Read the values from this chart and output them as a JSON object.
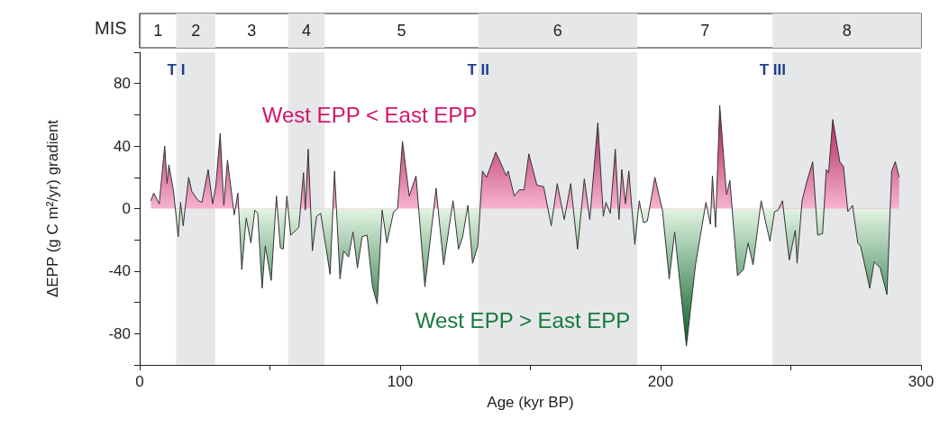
{
  "chart_data": {
    "type": "area",
    "xlabel": "Age (kyr BP)",
    "ylabel": "ΔEPP (g C m²/yr) gradient",
    "xlim": [
      0,
      300
    ],
    "xticks": [
      0,
      {
        "value": 50,
        "label": null
      },
      100,
      {
        "value": 150,
        "label": null
      },
      200,
      {
        "value": 250,
        "label": null
      },
      300
    ],
    "ylim": [
      -100,
      100
    ],
    "yticks": [
      {
        "value": -100,
        "label": null
      },
      -80,
      {
        "value": -60,
        "label": null
      },
      -40,
      {
        "value": -20,
        "label": null
      },
      0,
      {
        "value": 20,
        "label": null
      },
      40,
      {
        "value": 60,
        "label": null
      },
      80,
      {
        "value": 100,
        "label": null
      }
    ],
    "grid": false,
    "marker": "none",
    "line_style": "solid",
    "series": [
      {
        "color": "#333333",
        "x": [
          4.3,
          5.4,
          7.5,
          9.6,
          10.5,
          11.2,
          13,
          14.8,
          15.7,
          16.7,
          18.8,
          20,
          22.5,
          23.9,
          26.3,
          28,
          29.2,
          30.9,
          32.3,
          33.7,
          36.3,
          37.7,
          39.2,
          40.9,
          42.7,
          44.2,
          45.3,
          47,
          48.2,
          50.5,
          52.5,
          54,
          55.1,
          56.5,
          58,
          61.1,
          62.9,
          63.6,
          64.7,
          66.3,
          67.9,
          69.5,
          73.1,
          74.8,
          76.9,
          78.3,
          80.2,
          81.9,
          83.6,
          85.4,
          87.3,
          89.4,
          91.2,
          93.1,
          94.9,
          97.5,
          99,
          100.9,
          103.5,
          106.1,
          109.5,
          113.8,
          116.7,
          120.3,
          122.4,
          124,
          126,
          127.8,
          129.8,
          131.6,
          133.2,
          136.7,
          138.4,
          140.7,
          141.5,
          143.8,
          145.7,
          147.6,
          149.4,
          152.5,
          155.1,
          158,
          160.3,
          163,
          165.5,
          168.1,
          170.7,
          172.8,
          175.9,
          178,
          179,
          180.7,
          182.6,
          184,
          185.1,
          186.5,
          187.8,
          190.1,
          191.8,
          193.4,
          194.9,
          197.8,
          200.7,
          203.3,
          205.4,
          209.9,
          213.4,
          217.4,
          219.1,
          219.9,
          221.1,
          222.7,
          225.3,
          226.6,
          229.5,
          231.8,
          233.6,
          235.5,
          238.6,
          240.5,
          242,
          243.7,
          245.1,
          246.8,
          249.4,
          251.7,
          252.4,
          254.3,
          256.1,
          258.4,
          260.3,
          262.2,
          263.6,
          264.5,
          266.1,
          268.8,
          270.2,
          271.9,
          273.7,
          275.7,
          276.8,
          280.3,
          282,
          284.3,
          286.9,
          288.7,
          290.1,
          291.6
        ],
        "values": [
          5,
          10,
          3,
          40,
          16,
          28,
          11,
          -18,
          4,
          -11,
          20,
          11,
          5,
          4,
          25,
          3,
          14,
          48,
          2,
          31,
          -4,
          10,
          -39,
          -6,
          -22,
          -1,
          -3,
          -51,
          -24,
          -46,
          8,
          -25,
          -26,
          8,
          -17,
          -12,
          23,
          -1,
          38,
          -27,
          -5,
          -3,
          -42,
          24,
          -45,
          -27,
          -31,
          -15,
          -38,
          -18,
          -17,
          -50,
          -61,
          -1,
          -22,
          -2,
          0,
          43,
          8,
          21,
          -50,
          13,
          -36,
          5,
          -26,
          -18,
          2,
          -35,
          -24,
          24,
          20,
          36,
          30,
          21,
          24,
          8,
          12,
          12,
          35,
          15,
          14,
          -11,
          16,
          -7,
          16,
          -26,
          19,
          -7,
          55,
          -5,
          4,
          -3,
          38,
          -7,
          25,
          3,
          24,
          -23,
          5,
          -9,
          -8,
          20,
          -1,
          -45,
          -15,
          -88,
          -36,
          4,
          -10,
          21,
          -12,
          66,
          9,
          18,
          -43,
          -39,
          -22,
          -36,
          5,
          -10,
          -21,
          -2,
          -1,
          5,
          -33,
          -14,
          -35,
          5,
          17,
          30,
          -17,
          -16,
          25,
          23,
          57,
          30,
          27,
          -2,
          2,
          -22,
          -24,
          -51,
          -34,
          -38,
          -55,
          24,
          30,
          20
        ]
      }
    ],
    "bands": [
      {
        "axis": "x",
        "from": 14,
        "to": 29,
        "label": "2",
        "color": "#e6e7e8"
      },
      {
        "axis": "x",
        "from": 57,
        "to": 71,
        "label": "4",
        "color": "#e6e7e8"
      },
      {
        "axis": "x",
        "from": 130,
        "to": 191,
        "label": "6",
        "color": "#e6e7e8"
      },
      {
        "axis": "x",
        "from": 243,
        "to": 300,
        "label": "8",
        "color": "#e6e7e8"
      }
    ],
    "annotations": [
      "West EPP < East EPP",
      "West EPP > East EPP",
      {
        "text": "T I",
        "x": 14,
        "y": 89
      },
      {
        "text": "T II",
        "x": 130,
        "y": 89
      },
      {
        "text": "T III",
        "x": 243,
        "y": 89
      },
      "MIS",
      "1",
      "3",
      "5",
      "7"
    ]
  }
}
